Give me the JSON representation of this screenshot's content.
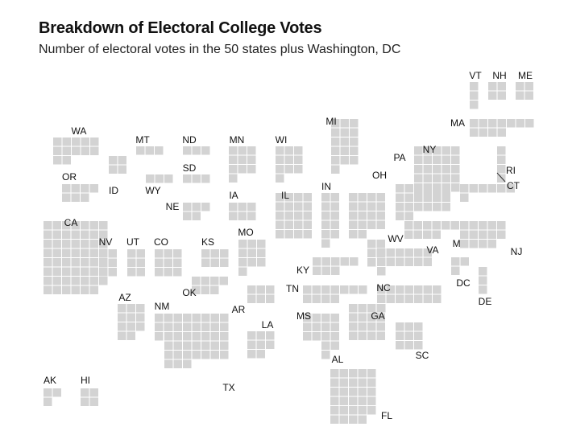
{
  "chart_data": {
    "type": "tile-map",
    "title": "Breakdown of Electoral College Votes",
    "subtitle": "Number of electoral votes in the 50 states plus Washington, DC",
    "unit": "electoral vote",
    "square_color": "#d3d3d3",
    "states": [
      {
        "code": "AK",
        "votes": 3
      },
      {
        "code": "HI",
        "votes": 4
      },
      {
        "code": "WA",
        "votes": 12
      },
      {
        "code": "OR",
        "votes": 7
      },
      {
        "code": "CA",
        "votes": 55
      },
      {
        "code": "NV",
        "votes": 6
      },
      {
        "code": "ID",
        "votes": 4
      },
      {
        "code": "MT",
        "votes": 3
      },
      {
        "code": "WY",
        "votes": 3
      },
      {
        "code": "UT",
        "votes": 6
      },
      {
        "code": "CO",
        "votes": 9
      },
      {
        "code": "AZ",
        "votes": 11
      },
      {
        "code": "NM",
        "votes": 5
      },
      {
        "code": "ND",
        "votes": 3
      },
      {
        "code": "SD",
        "votes": 3
      },
      {
        "code": "NE",
        "votes": 5
      },
      {
        "code": "KS",
        "votes": 6
      },
      {
        "code": "OK",
        "votes": 7
      },
      {
        "code": "TX",
        "votes": 38
      },
      {
        "code": "MN",
        "votes": 10
      },
      {
        "code": "IA",
        "votes": 6
      },
      {
        "code": "MO",
        "votes": 10
      },
      {
        "code": "AR",
        "votes": 6
      },
      {
        "code": "LA",
        "votes": 8
      },
      {
        "code": "WI",
        "votes": 10
      },
      {
        "code": "IL",
        "votes": 20
      },
      {
        "code": "MI",
        "votes": 16
      },
      {
        "code": "IN",
        "votes": 11
      },
      {
        "code": "OH",
        "votes": 18
      },
      {
        "code": "KY",
        "votes": 8
      },
      {
        "code": "TN",
        "votes": 11
      },
      {
        "code": "MS",
        "votes": 6
      },
      {
        "code": "AL",
        "votes": 9
      },
      {
        "code": "GA",
        "votes": 16
      },
      {
        "code": "FL",
        "votes": 29
      },
      {
        "code": "SC",
        "votes": 9
      },
      {
        "code": "NC",
        "votes": 15
      },
      {
        "code": "VA",
        "votes": 13
      },
      {
        "code": "WV",
        "votes": 5
      },
      {
        "code": "MD",
        "votes": 10
      },
      {
        "code": "DC",
        "votes": 3
      },
      {
        "code": "DE",
        "votes": 3
      },
      {
        "code": "PA",
        "votes": 20
      },
      {
        "code": "NJ",
        "votes": 14
      },
      {
        "code": "NY",
        "votes": 29
      },
      {
        "code": "CT",
        "votes": 7
      },
      {
        "code": "RI",
        "votes": 4
      },
      {
        "code": "MA",
        "votes": 11
      },
      {
        "code": "VT",
        "votes": 3
      },
      {
        "code": "NH",
        "votes": 4
      },
      {
        "code": "ME",
        "votes": 4
      }
    ]
  }
}
